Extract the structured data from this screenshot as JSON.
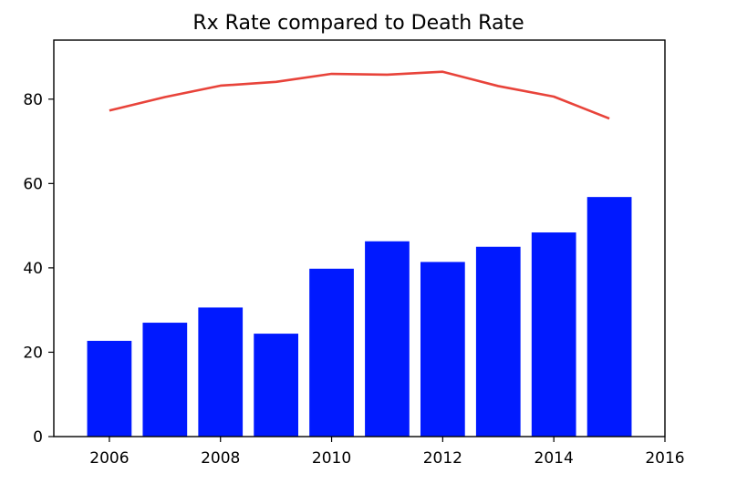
{
  "chart_data": {
    "type": "bar",
    "title": "Rx Rate compared to Death Rate",
    "xlabel": "",
    "ylabel": "",
    "xlim": [
      2005,
      2016
    ],
    "ylim": [
      0,
      94
    ],
    "x_ticks": [
      2006,
      2008,
      2010,
      2012,
      2014,
      2016
    ],
    "y_ticks": [
      0,
      20,
      40,
      60,
      80
    ],
    "grid": false,
    "legend": "none",
    "x": [
      2006,
      2007,
      2008,
      2009,
      2010,
      2011,
      2012,
      2013,
      2014,
      2015
    ],
    "bar_width": 0.8,
    "series": [
      {
        "type": "bar",
        "color": "#0019ff",
        "values": [
          22.7,
          27.0,
          30.6,
          24.4,
          39.8,
          46.3,
          41.4,
          45.0,
          48.4,
          56.8
        ]
      },
      {
        "type": "line",
        "color": "#e8433a",
        "values": [
          77.3,
          80.5,
          83.2,
          84.1,
          86.0,
          85.8,
          86.5,
          83.1,
          80.6,
          75.4
        ]
      }
    ]
  }
}
